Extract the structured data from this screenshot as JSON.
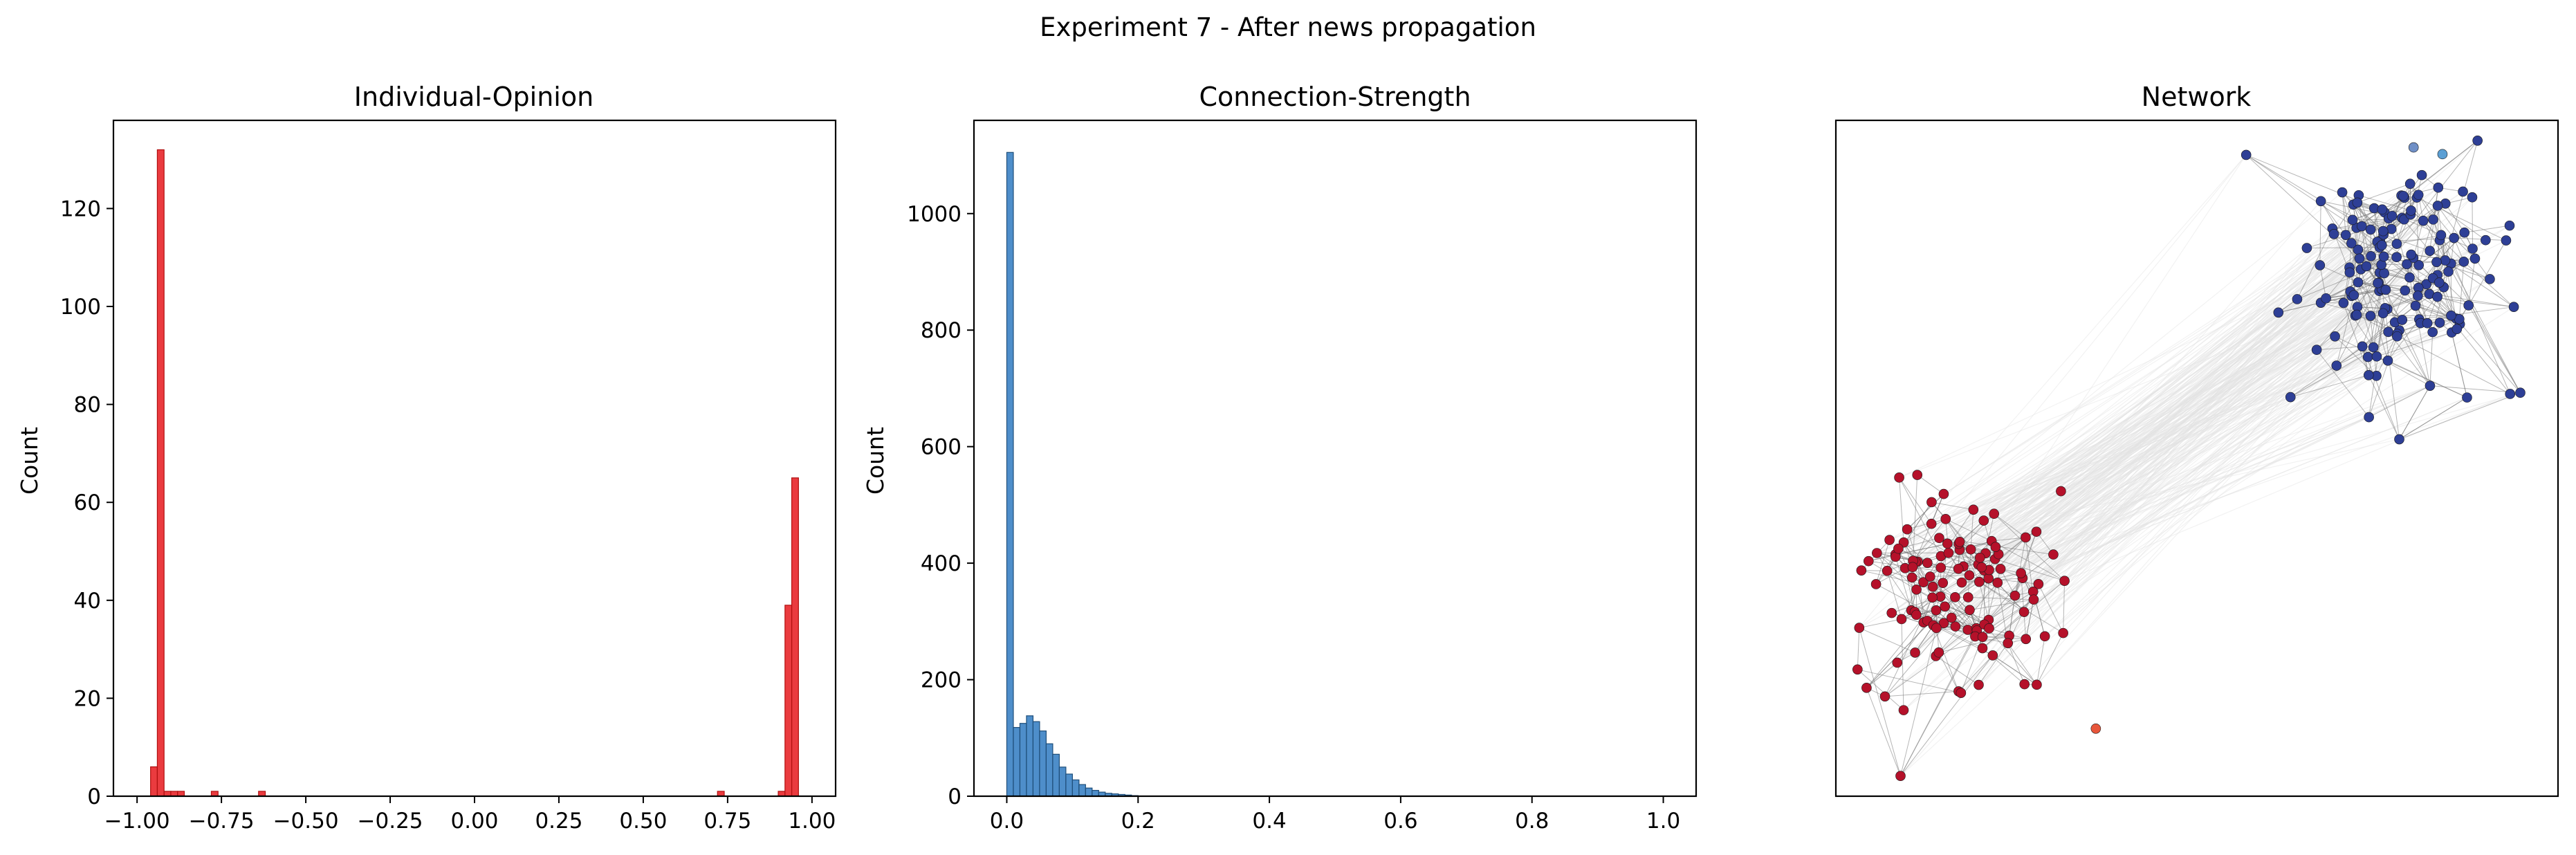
{
  "figure": {
    "suptitle": "Experiment 7 - After news propagation"
  },
  "chart_data": [
    {
      "type": "bar",
      "title": "Individual-Opinion",
      "xlabel": "",
      "ylabel": "Count",
      "xlim": [
        -1.07,
        1.07
      ],
      "ylim": [
        0,
        138
      ],
      "xticks": [
        -1.0,
        -0.75,
        -0.5,
        -0.25,
        0.0,
        0.25,
        0.5,
        0.75,
        1.0
      ],
      "xtick_labels": [
        "−1.00",
        "−0.75",
        "−0.50",
        "−0.25",
        "0.00",
        "0.25",
        "0.50",
        "0.75",
        "1.00"
      ],
      "yticks": [
        0,
        20,
        40,
        60,
        80,
        100,
        120
      ],
      "ytick_labels": [
        "0",
        "20",
        "40",
        "60",
        "80",
        "100",
        "120"
      ],
      "bin_width": 0.02,
      "bin_starts": [
        -0.96,
        -0.94,
        -0.92,
        -0.9,
        -0.88,
        -0.78,
        -0.64,
        0.72,
        0.9,
        0.92,
        0.94
      ],
      "values": [
        6,
        132,
        1,
        1,
        1,
        1,
        1,
        1,
        1,
        39,
        65
      ],
      "color": "#e8262a",
      "edge": "#b01010",
      "grid": false
    },
    {
      "type": "bar",
      "title": "Connection-Strength",
      "xlabel": "",
      "ylabel": "Count",
      "xlim": [
        -0.05,
        1.05
      ],
      "ylim": [
        0,
        1160
      ],
      "xticks": [
        0.0,
        0.2,
        0.4,
        0.6,
        0.8,
        1.0
      ],
      "xtick_labels": [
        "0.0",
        "0.2",
        "0.4",
        "0.6",
        "0.8",
        "1.0"
      ],
      "yticks": [
        0,
        200,
        400,
        600,
        800,
        1000
      ],
      "ytick_labels": [
        "0",
        "200",
        "400",
        "600",
        "800",
        "1000"
      ],
      "bin_width": 0.01,
      "bin_starts": [
        0.0,
        0.01,
        0.02,
        0.03,
        0.04,
        0.05,
        0.06,
        0.07,
        0.08,
        0.09,
        0.1,
        0.11,
        0.12,
        0.13,
        0.14,
        0.15,
        0.16,
        0.17,
        0.18,
        0.19
      ],
      "values": [
        1105,
        118,
        125,
        138,
        128,
        112,
        90,
        72,
        50,
        38,
        28,
        20,
        14,
        10,
        7,
        5,
        4,
        3,
        2,
        1
      ],
      "color": "#3b82c4",
      "edge": "#1f4e79",
      "grid": false
    },
    {
      "type": "scatter",
      "title": "Network",
      "xlabel": "",
      "ylabel": "",
      "axes": false,
      "clusters": [
        {
          "count": 150,
          "center": [
            0.78,
            0.77
          ],
          "spread": [
            0.065,
            0.085
          ],
          "color": "#2e3f96",
          "edge_color": "#7a7a7a"
        },
        {
          "count": 120,
          "center": [
            0.17,
            0.31
          ],
          "spread": [
            0.065,
            0.07
          ],
          "color": "#b5112a",
          "edge_color": "#7a7a7a"
        }
      ],
      "outliers": [
        {
          "pos": [
            0.8,
            0.96
          ],
          "color": "#6f8fc6"
        },
        {
          "pos": [
            0.84,
            0.95
          ],
          "color": "#5b9fd4"
        },
        {
          "pos": [
            0.36,
            0.1
          ],
          "color": "#e8563b"
        }
      ],
      "cross_edge_color": "#e2e2e2"
    }
  ]
}
